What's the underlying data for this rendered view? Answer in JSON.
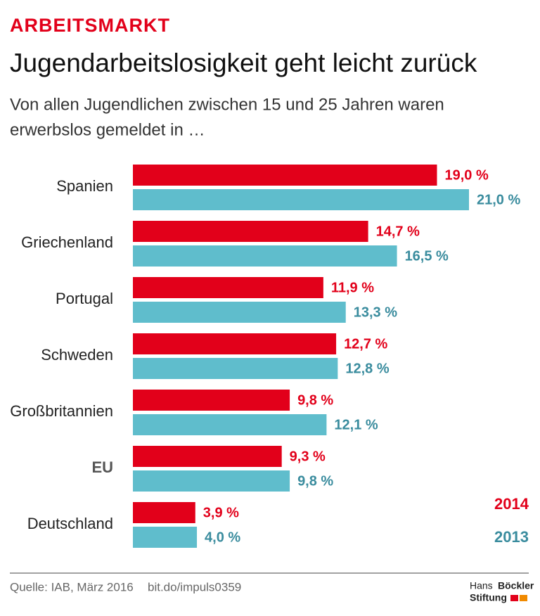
{
  "chart_data": {
    "type": "bar",
    "orientation": "horizontal",
    "kicker": "ARBEITSMARKT",
    "title": "Jugendarbeitslosigkeit geht leicht zurück",
    "subtitle": [
      "Von allen Jugendlichen zwischen 15 und 25 Jahren waren",
      "erwerbslos gemeldet in …"
    ],
    "categories": [
      "Spanien",
      "Griechenland",
      "Portugal",
      "Schweden",
      "Großbritannien",
      "EU",
      "Deutschland"
    ],
    "highlight_category": "EU",
    "series": [
      {
        "name": "2014",
        "color": "#e2001a",
        "label_color": "#e2001a",
        "values": [
          19.0,
          14.7,
          11.9,
          12.7,
          9.8,
          9.3,
          3.9
        ],
        "value_labels": [
          "19,0 %",
          "14,7 %",
          "11,9 %",
          "12,7 %",
          "9,8 %",
          "9,3 %",
          "3,9 %"
        ]
      },
      {
        "name": "2013",
        "color": "#5fbdcc",
        "label_color": "#3a8c9e",
        "values": [
          21.0,
          16.5,
          13.3,
          12.8,
          12.1,
          9.8,
          4.0
        ],
        "value_labels": [
          "21,0 %",
          "16,5 %",
          "13,3 %",
          "12,8 %",
          "12,1 %",
          "9,8 %",
          "4,0 %"
        ]
      }
    ],
    "legend": "bottom-right",
    "source": "Quelle: IAB, März 2016",
    "link": "bit.do/impuls0359",
    "logo": [
      "Hans",
      "Böckler",
      "Stiftung"
    ]
  }
}
